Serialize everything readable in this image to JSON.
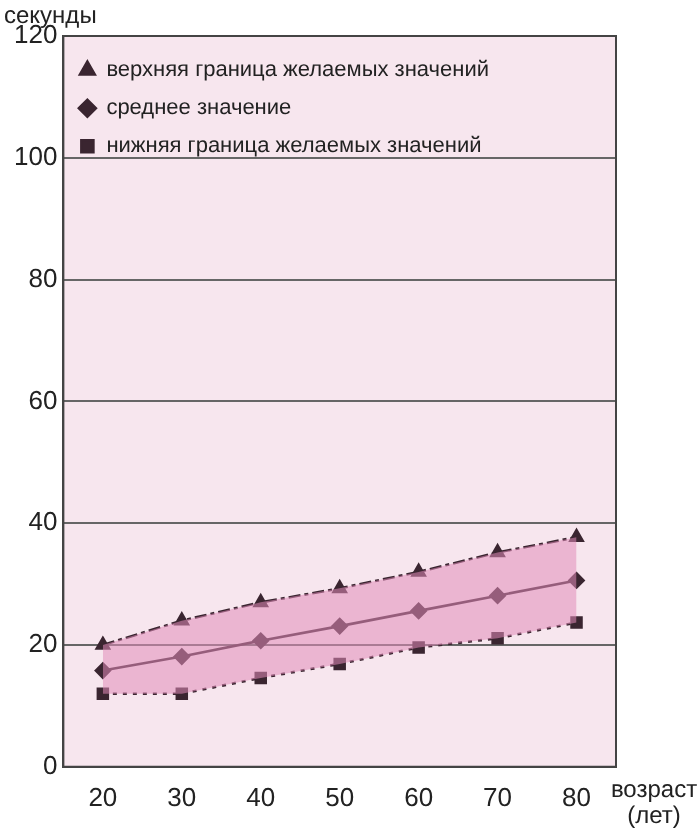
{
  "chart_data": {
    "type": "line",
    "xlabel": "возраст (лет)",
    "ylabel": "секунды",
    "x": [
      20,
      30,
      40,
      50,
      60,
      70,
      80
    ],
    "series": [
      {
        "name": "верхняя граница желаемых значений",
        "color": "#3a2530",
        "values": [
          20,
          24,
          27,
          29.3,
          32,
          35.2,
          37.7
        ],
        "marker": "triangle",
        "line_style": "dashed"
      },
      {
        "name": "среднее значение",
        "color": "#3a2530",
        "values": [
          15.8,
          18.1,
          20.7,
          23.1,
          25.6,
          28.1,
          30.6
        ],
        "marker": "diamond",
        "line_style": "solid",
        "lower": [
          12,
          12,
          14.6,
          16.9,
          19.6,
          21.1,
          23.7
        ],
        "upper": [
          20,
          24,
          27,
          29.3,
          32,
          35.2,
          37.7
        ]
      },
      {
        "name": "нижняя граница желаемых значений",
        "color": "#3a2530",
        "values": [
          12,
          12,
          14.6,
          16.9,
          19.6,
          21.1,
          23.7
        ],
        "marker": "square",
        "line_style": "dotted"
      }
    ],
    "xlim": [
      15,
      85
    ],
    "xticks": [
      20,
      30,
      40,
      50,
      60,
      70,
      80
    ],
    "ylim": [
      0,
      120
    ],
    "yticks": [
      0,
      20,
      40,
      60,
      80,
      100,
      120
    ],
    "grid": "y",
    "legend": "top left"
  }
}
